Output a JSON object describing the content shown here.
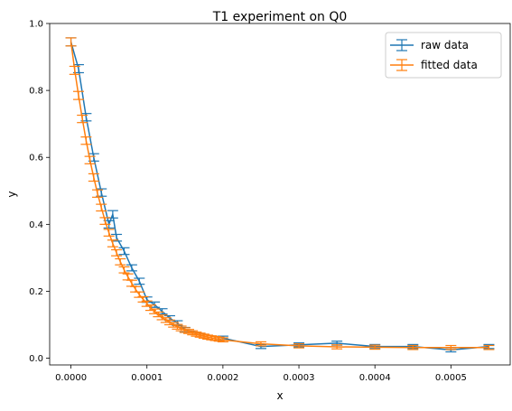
{
  "chart_data": {
    "type": "line",
    "title": "T1 experiment on Q0",
    "xlabel": "x",
    "ylabel": "y",
    "xlim": [
      -2.8e-05,
      0.000578
    ],
    "ylim": [
      -0.02,
      1.0
    ],
    "xticks": [
      0.0,
      0.0001,
      0.0002,
      0.0003,
      0.0004,
      0.0005
    ],
    "xtick_labels": [
      "0.0000",
      "0.0001",
      "0.0002",
      "0.0003",
      "0.0004",
      "0.0005"
    ],
    "yticks": [
      0.0,
      0.2,
      0.4,
      0.6,
      0.8,
      1.0
    ],
    "ytick_labels": [
      "0.0",
      "0.2",
      "0.4",
      "0.6",
      "0.8",
      "1.0"
    ],
    "grid": false,
    "legend_position": "top-right",
    "error_bars": true,
    "series": [
      {
        "name": "raw data",
        "color": "#1f77b4",
        "points": [
          [
            0.0,
            0.945,
            0.012
          ],
          [
            1e-05,
            0.865,
            0.012
          ],
          [
            2e-05,
            0.72,
            0.011
          ],
          [
            3e-05,
            0.6,
            0.011
          ],
          [
            4e-05,
            0.495,
            0.011
          ],
          [
            5e-05,
            0.4,
            0.011
          ],
          [
            5.5e-05,
            0.43,
            0.011
          ],
          [
            6e-05,
            0.36,
            0.01
          ],
          [
            7e-05,
            0.32,
            0.01
          ],
          [
            8e-05,
            0.27,
            0.009
          ],
          [
            9e-05,
            0.23,
            0.009
          ],
          [
            0.0001,
            0.175,
            0.008
          ],
          [
            0.00011,
            0.16,
            0.008
          ],
          [
            0.00012,
            0.14,
            0.008
          ],
          [
            0.00013,
            0.12,
            0.007
          ],
          [
            0.00014,
            0.105,
            0.007
          ],
          [
            0.00015,
            0.085,
            0.007
          ],
          [
            0.0002,
            0.06,
            0.006
          ],
          [
            0.00025,
            0.035,
            0.006
          ],
          [
            0.0003,
            0.04,
            0.006
          ],
          [
            0.00035,
            0.045,
            0.006
          ],
          [
            0.0004,
            0.035,
            0.006
          ],
          [
            0.00045,
            0.035,
            0.006
          ],
          [
            0.0005,
            0.025,
            0.006
          ],
          [
            0.00055,
            0.035,
            0.006
          ]
        ]
      },
      {
        "name": "fitted data",
        "color": "#ff7f0e",
        "points": [
          [
            0.0,
            0.945,
            0.012
          ],
          [
            5e-06,
            0.86,
            0.012
          ],
          [
            1e-05,
            0.785,
            0.012
          ],
          [
            1.5e-05,
            0.715,
            0.011
          ],
          [
            2e-05,
            0.65,
            0.011
          ],
          [
            2.5e-05,
            0.592,
            0.011
          ],
          [
            3e-05,
            0.54,
            0.011
          ],
          [
            3.5e-05,
            0.492,
            0.011
          ],
          [
            4e-05,
            0.45,
            0.01
          ],
          [
            4.5e-05,
            0.41,
            0.01
          ],
          [
            5e-05,
            0.375,
            0.01
          ],
          [
            5.5e-05,
            0.343,
            0.01
          ],
          [
            6e-05,
            0.315,
            0.009
          ],
          [
            6.5e-05,
            0.288,
            0.009
          ],
          [
            7e-05,
            0.264,
            0.009
          ],
          [
            7.5e-05,
            0.243,
            0.009
          ],
          [
            8e-05,
            0.224,
            0.009
          ],
          [
            8.5e-05,
            0.206,
            0.008
          ],
          [
            9e-05,
            0.19,
            0.008
          ],
          [
            9.5e-05,
            0.176,
            0.008
          ],
          [
            0.0001,
            0.163,
            0.008
          ],
          [
            0.000105,
            0.151,
            0.008
          ],
          [
            0.00011,
            0.14,
            0.007
          ],
          [
            0.000115,
            0.131,
            0.007
          ],
          [
            0.00012,
            0.122,
            0.007
          ],
          [
            0.000125,
            0.114,
            0.007
          ],
          [
            0.00013,
            0.107,
            0.007
          ],
          [
            0.000135,
            0.1,
            0.007
          ],
          [
            0.00014,
            0.094,
            0.007
          ],
          [
            0.000145,
            0.089,
            0.007
          ],
          [
            0.00015,
            0.084,
            0.007
          ],
          [
            0.000155,
            0.08,
            0.006
          ],
          [
            0.00016,
            0.076,
            0.006
          ],
          [
            0.000165,
            0.072,
            0.006
          ],
          [
            0.00017,
            0.069,
            0.006
          ],
          [
            0.000175,
            0.066,
            0.006
          ],
          [
            0.00018,
            0.063,
            0.006
          ],
          [
            0.000185,
            0.061,
            0.006
          ],
          [
            0.00019,
            0.059,
            0.006
          ],
          [
            0.000195,
            0.057,
            0.006
          ],
          [
            0.0002,
            0.055,
            0.006
          ],
          [
            0.00025,
            0.043,
            0.006
          ],
          [
            0.0003,
            0.037,
            0.006
          ],
          [
            0.00035,
            0.034,
            0.006
          ],
          [
            0.0004,
            0.033,
            0.006
          ],
          [
            0.00045,
            0.032,
            0.006
          ],
          [
            0.0005,
            0.032,
            0.006
          ],
          [
            0.00055,
            0.032,
            0.006
          ]
        ]
      }
    ]
  }
}
